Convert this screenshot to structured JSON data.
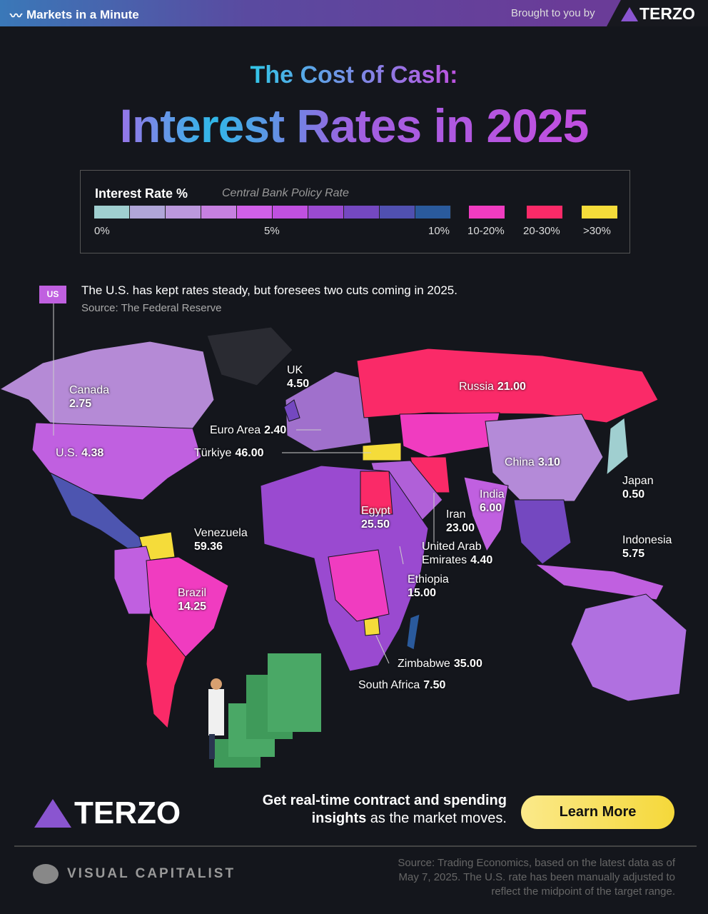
{
  "header": {
    "brand": "Markets in a Minute",
    "brought_by": "Brought to you by",
    "sponsor": "TERZO"
  },
  "title": {
    "line1": "The Cost of Cash:",
    "line2": "Interest Rates in 2025"
  },
  "legend": {
    "title": "Interest Rate %",
    "subtitle": "Central Bank Policy Rate",
    "labels": [
      "0%",
      "5%",
      "10%"
    ],
    "categories": [
      "10-20%",
      "20-30%",
      ">30%"
    ],
    "scale_colors": [
      "#a0cfd0",
      "#b0a6d8",
      "#bb98dc",
      "#c680e0",
      "#d060e8",
      "#c050e0",
      "#9a4ad0",
      "#7448c0",
      "#5050b0",
      "#2a5a9c"
    ],
    "category_colors": [
      "#f03cc0",
      "#fa2a68",
      "#f5dc3a"
    ]
  },
  "annotation": {
    "tag": "US",
    "text": "The U.S. has kept rates steady, but foresees two cuts coming in 2025.",
    "source": "Source: The Federal Reserve"
  },
  "countries": [
    {
      "name": "Canada",
      "rate": "2.75"
    },
    {
      "name": "U.S.",
      "rate": "4.38"
    },
    {
      "name": "UK",
      "rate": "4.50"
    },
    {
      "name": "Euro Area",
      "rate": "2.40"
    },
    {
      "name": "Türkiye",
      "rate": "46.00"
    },
    {
      "name": "Russia",
      "rate": "21.00"
    },
    {
      "name": "China",
      "rate": "3.10"
    },
    {
      "name": "Japan",
      "rate": "0.50"
    },
    {
      "name": "India",
      "rate": "6.00"
    },
    {
      "name": "Iran",
      "rate": "23.00"
    },
    {
      "name": "Egypt",
      "rate": "25.50"
    },
    {
      "name": "United Arab Emirates",
      "rate": "4.40"
    },
    {
      "name": "Indonesia",
      "rate": "5.75"
    },
    {
      "name": "Venezuela",
      "rate": "59.36"
    },
    {
      "name": "Brazil",
      "rate": "14.25"
    },
    {
      "name": "Ethiopia",
      "rate": "15.00"
    },
    {
      "name": "Zimbabwe",
      "rate": "35.00"
    },
    {
      "name": "South Africa",
      "rate": "7.50"
    }
  ],
  "footer": {
    "sponsor": "TERZO",
    "cta_bold1": "Get real-time contract and spending",
    "cta_bold2": "insights",
    "cta_rest": " as the market moves.",
    "button": "Learn More",
    "publisher": "VISUAL CAPITALIST",
    "source": "Source: Trading Economics, based on the latest data as of May 7, 2025. The U.S. rate has been manually adjusted to reflect the midpoint of the target range."
  }
}
